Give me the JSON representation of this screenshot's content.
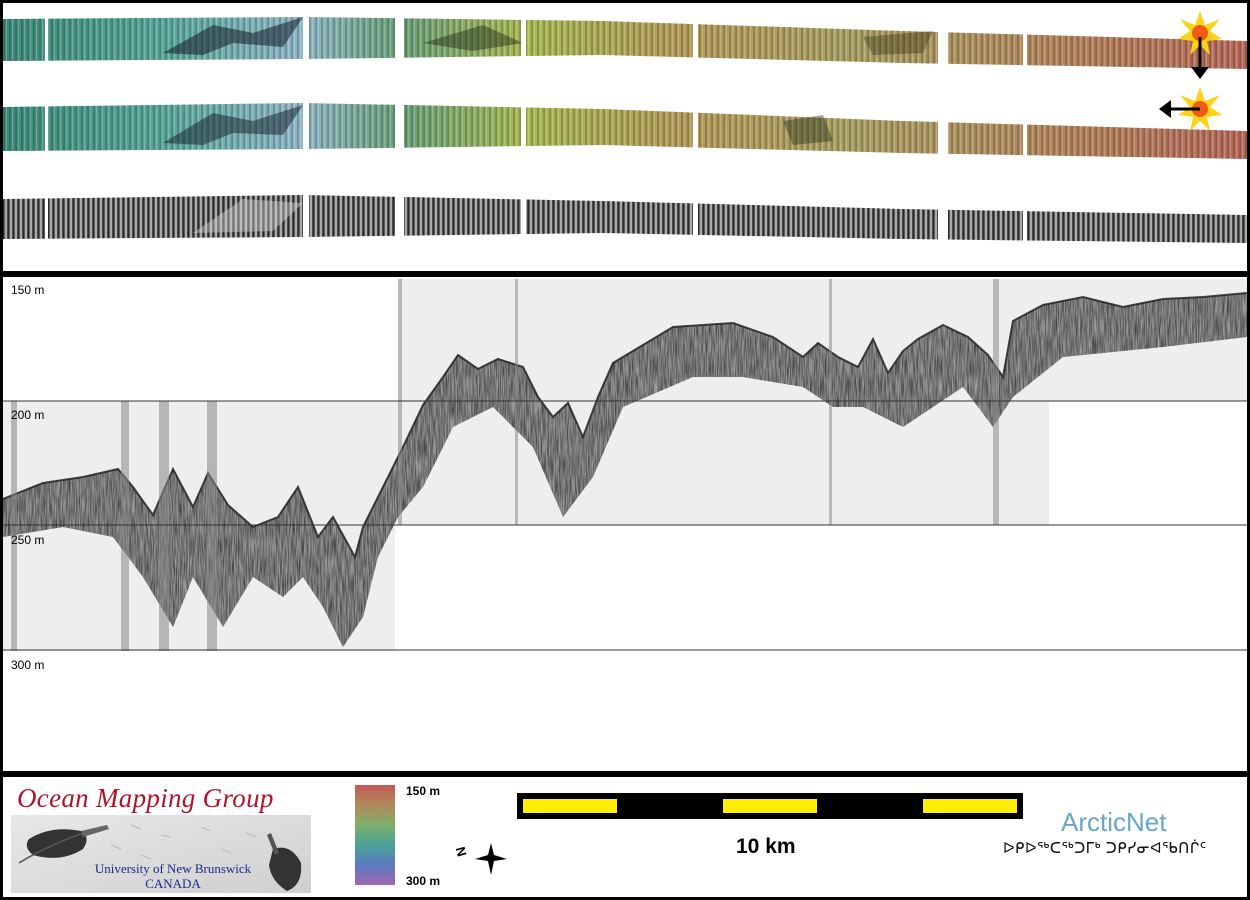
{
  "profile": {
    "depth_labels": [
      "150 m",
      "200 m",
      "250 m",
      "300 m"
    ]
  },
  "legend": {
    "top": "150 m",
    "bottom": "300 m"
  },
  "scale": {
    "label": "10 km"
  },
  "logos": {
    "omg_title": "Ocean Mapping Group",
    "omg_line1": "University of New Brunswick",
    "omg_line2": "CANADA",
    "arcticnet": "ArcticNet",
    "arcticnet_inuktitut": "ᐅᑭᐅᖅᑕᖅᑐᒥᒃ ᑐᑭᓯᓂᐊᖃᑎᒌᑦ"
  },
  "colors": {
    "panel_border": "#000000",
    "depth_line": "#333333",
    "scale_yellow": "#ffee00",
    "omg_red": "#b0142a",
    "omg_blue": "#1c2a8a",
    "arcticnet_blue": "#6aa6c8"
  },
  "icons": [
    "sun-icon",
    "arrow-down-icon",
    "arrow-left-icon",
    "compass-icon"
  ]
}
